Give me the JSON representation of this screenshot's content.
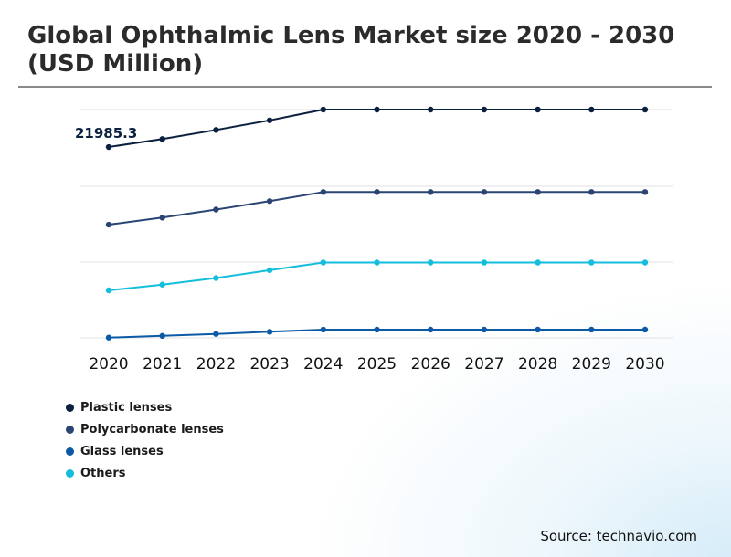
{
  "title": "Global Ophthalmic Lens Market size 2020 - 2030 (USD Million)",
  "source": "Source: technavio.com",
  "chart_data": {
    "type": "line",
    "title": "Global Ophthalmic Lens Market size 2020 - 2030 (USD Million)",
    "xlabel": "",
    "ylabel": "",
    "x": [
      "2020",
      "2021",
      "2022",
      "2023",
      "2024",
      "2025",
      "2026",
      "2027",
      "2028",
      "2029",
      "2030"
    ],
    "y_axis_visible": false,
    "grid": "horizontal",
    "legend_position": "bottom-left",
    "annotations": [
      {
        "series": "Plastic lenses",
        "x": "2020",
        "text": "21985.3"
      }
    ],
    "series": [
      {
        "name": "Plastic lenses",
        "color": "#0b1f3f",
        "values": [
          21985.3,
          22900,
          23950,
          25060,
          26300,
          26300,
          26300,
          26300,
          26300,
          26300,
          26300
        ]
      },
      {
        "name": "Polycarbonate lenses",
        "color": "#2a4573",
        "values": [
          13040,
          13850,
          14780,
          15750,
          16800,
          16800,
          16800,
          16800,
          16800,
          16800,
          16800
        ]
      },
      {
        "name": "Glass lenses",
        "color": "#0c5aa6",
        "values": [
          30,
          230,
          450,
          700,
          950,
          950,
          950,
          950,
          950,
          950,
          950
        ]
      },
      {
        "name": "Others",
        "color": "#12bedb",
        "values": [
          5470,
          6130,
          6890,
          7800,
          8680,
          8680,
          8680,
          8680,
          8680,
          8680,
          8680
        ]
      }
    ]
  }
}
